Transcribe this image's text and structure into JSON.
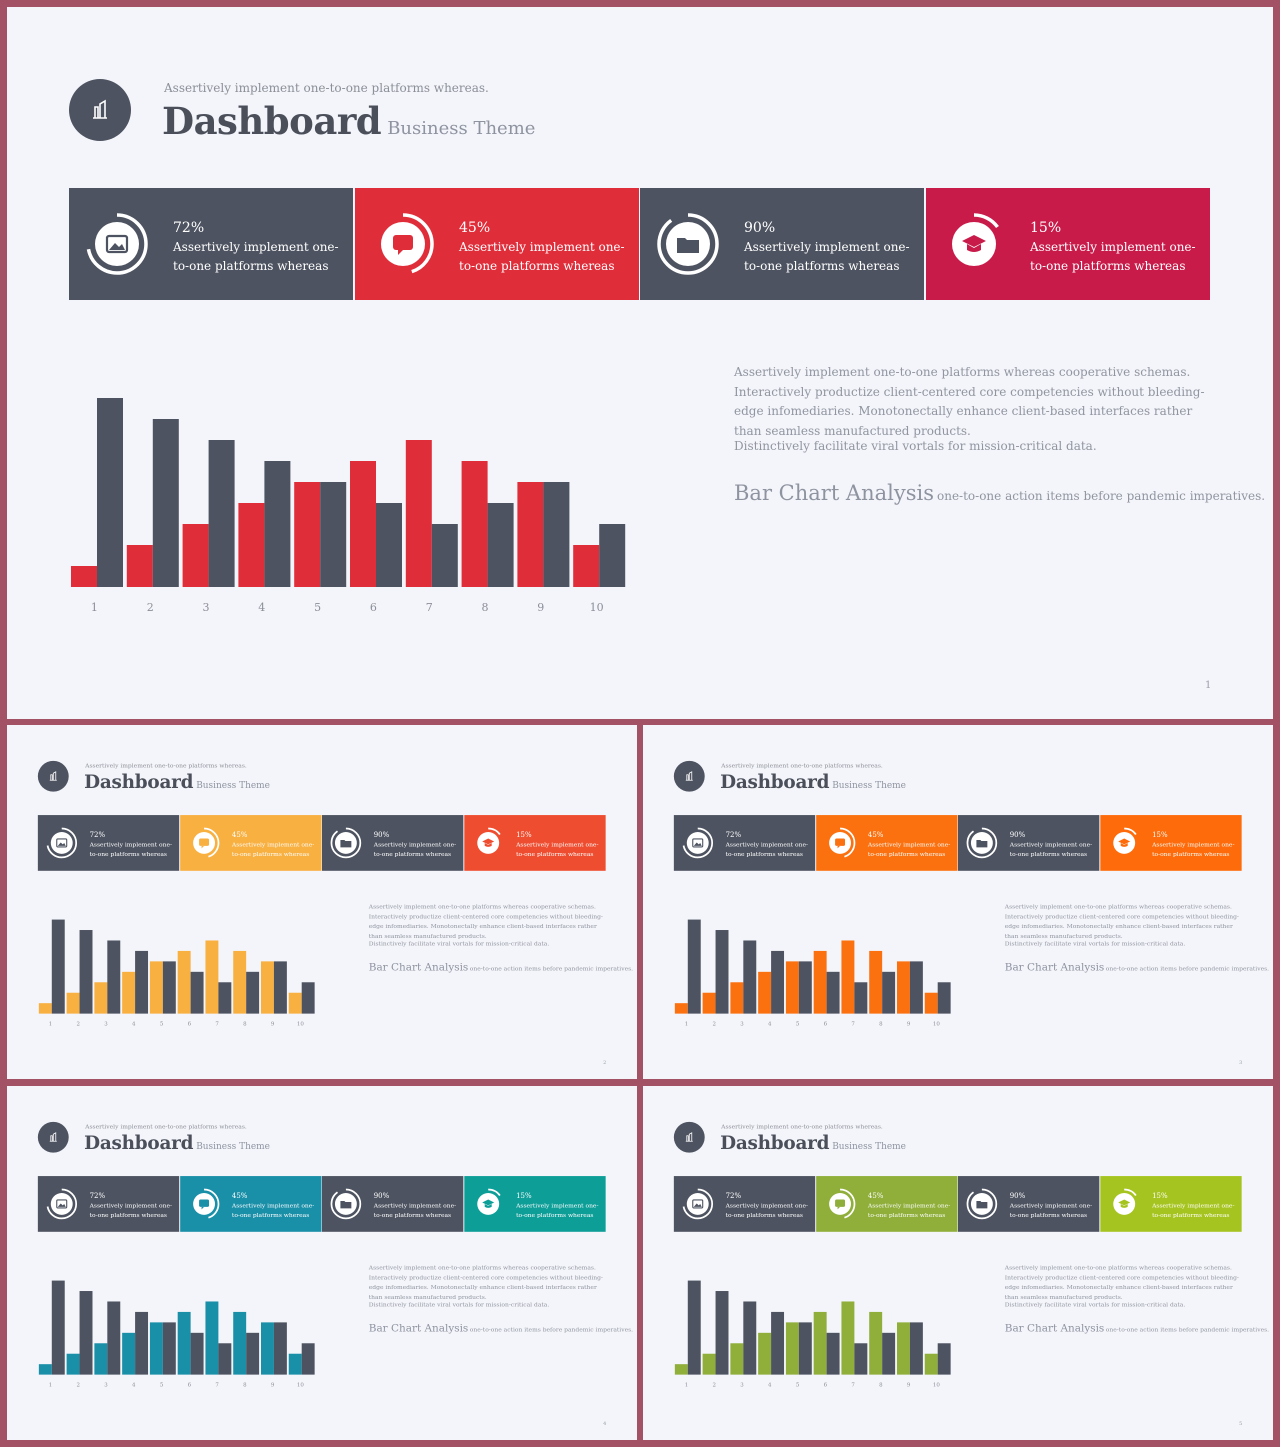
{
  "header": {
    "tagline": "Assertively implement one-to-one platforms whereas.",
    "title": "Dashboard",
    "subtitle": "Business Theme"
  },
  "stats": [
    {
      "pct": "72%",
      "text": "Assertively implement one-to-one platforms whereas",
      "icon": "image-icon",
      "progress": 0.72
    },
    {
      "pct": "45%",
      "text": "Assertively implement one-to-one platforms whereas",
      "icon": "chat-icon",
      "progress": 0.45
    },
    {
      "pct": "90%",
      "text": "Assertively implement one-to-one platforms whereas",
      "icon": "folder-icon",
      "progress": 0.9
    },
    {
      "pct": "15%",
      "text": "Assertively implement one-to-one platforms whereas",
      "icon": "graduation-cap-icon",
      "progress": 0.15
    }
  ],
  "body": {
    "paragraph": "Assertively implement one-to-one platforms whereas cooperative schemas. Interactively productize client-centered core competencies without bleeding-edge infomediaries. Monotonectally enhance client-based interfaces rather than seamless manufactured products.",
    "line2": "Distinctively facilitate viral vortals for mission-critical data.",
    "analysis_title": "Bar Chart Analysis",
    "analysis_sub": "one-to-one action items before pandemic imperatives."
  },
  "chart_data": {
    "type": "bar",
    "categories": [
      "1",
      "2",
      "3",
      "4",
      "5",
      "6",
      "7",
      "8",
      "9",
      "10"
    ],
    "series": [
      {
        "values": [
          1,
          2,
          3,
          4,
          5,
          6,
          7,
          6,
          5,
          2
        ]
      },
      {
        "values": [
          9,
          8,
          7,
          6,
          5,
          4,
          3,
          4,
          5,
          3
        ]
      }
    ],
    "ylim": [
      0,
      9
    ]
  },
  "slides": [
    {
      "page": "1",
      "dark": "#4d5360",
      "accent": "#e02d3a",
      "accent2": "#c81b4a"
    },
    {
      "page": "2",
      "dark": "#4d5360",
      "accent": "#f8b041",
      "accent2": "#ef4d30"
    },
    {
      "page": "3",
      "dark": "#4d5360",
      "accent": "#fb7110",
      "accent2": "#fe6b0a"
    },
    {
      "page": "4",
      "dark": "#4d5360",
      "accent": "#1a8fa8",
      "accent2": "#0e9e98"
    },
    {
      "page": "5",
      "dark": "#4d5360",
      "accent": "#8fae3a",
      "accent2": "#a6c420"
    }
  ],
  "colors": {
    "background": "#f4f5fa",
    "frame": "#a35266",
    "text": "#4a4f5a"
  }
}
